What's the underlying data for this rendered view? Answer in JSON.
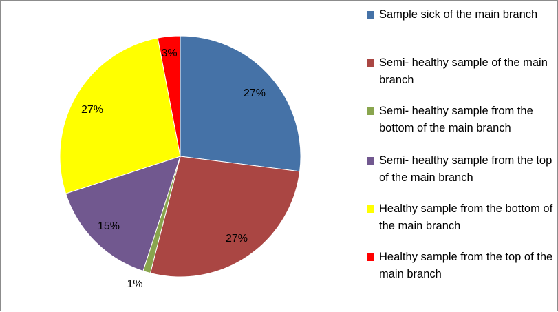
{
  "chart_data": {
    "type": "pie",
    "title": "",
    "slices": [
      {
        "label": "Sample sick of the main branch",
        "value": 27,
        "value_label": "27%",
        "color": "#4572A7"
      },
      {
        "label": "Semi- healthy sample of the main branch",
        "value": 27,
        "value_label": "27%",
        "color": "#AA4643"
      },
      {
        "label": "Semi- healthy sample from the bottom of the main branch",
        "value": 1,
        "value_label": "1%",
        "color": "#89A54E"
      },
      {
        "label": "Semi- healthy sample from the top of the main branch",
        "value": 15,
        "value_label": "15%",
        "color": "#71588F"
      },
      {
        "label": "Healthy sample from the bottom of the main branch",
        "value": 27,
        "value_label": "27%",
        "color": "#FFFF00"
      },
      {
        "label": "Healthy sample from the top of the main branch",
        "value": 3,
        "value_label": "3%",
        "color": "#FF0000"
      }
    ],
    "start_angle": "12 o'clock",
    "direction": "clockwise",
    "legend_placement": "right"
  }
}
